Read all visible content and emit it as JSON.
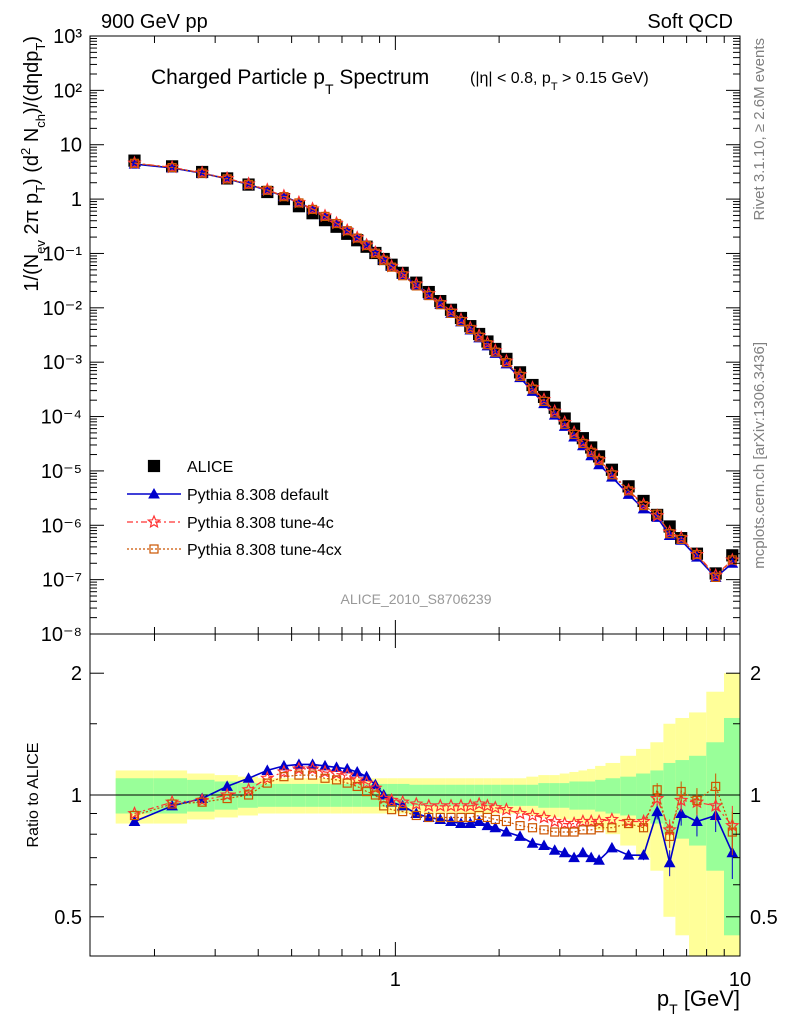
{
  "header": {
    "left": "900 GeV pp",
    "right": "Soft QCD"
  },
  "chart_data": [
    {
      "type": "scatter",
      "title": "Charged Particle pT Spectrum",
      "title_main": "Charged Particle p",
      "title_sub": "T",
      "title_after": " Spectrum",
      "cuts": "(|η| < 0.8, p",
      "cuts_sub": "T",
      "cuts_after": " > 0.15 GeV)",
      "ylabel": "1/(N_ev 2π pT) (d² N_ch)/(dηdpT)",
      "xlabel": "pT [GeV]",
      "x_log": true,
      "y_log": true,
      "xlim": [
        0.13,
        10
      ],
      "ylim": [
        1e-08,
        1000
      ],
      "analysis_label": "ALICE_2010_S8706239",
      "y_tick_labels": [
        "10⁻⁸",
        "10⁻⁷",
        "10⁻⁶",
        "10⁻⁵",
        "10⁻⁴",
        "10⁻³",
        "10⁻²",
        "10⁻¹",
        "1",
        "10",
        "10²",
        "10³"
      ],
      "legend_position": "bottom-left",
      "x": [
        0.175,
        0.225,
        0.275,
        0.325,
        0.375,
        0.425,
        0.475,
        0.525,
        0.575,
        0.625,
        0.675,
        0.725,
        0.775,
        0.825,
        0.875,
        0.925,
        0.975,
        1.05,
        1.15,
        1.25,
        1.35,
        1.45,
        1.55,
        1.65,
        1.75,
        1.85,
        1.95,
        2.1,
        2.3,
        2.5,
        2.7,
        2.9,
        3.1,
        3.3,
        3.5,
        3.7,
        3.9,
        4.25,
        4.75,
        5.25,
        5.75,
        6.25,
        6.75,
        7.5,
        8.5,
        9.5
      ],
      "series": [
        {
          "name": "ALICE",
          "values": [
            5.1,
            4.0,
            3.15,
            2.4,
            1.85,
            1.35,
            1.0,
            0.74,
            0.55,
            0.41,
            0.31,
            0.23,
            0.175,
            0.133,
            0.102,
            0.079,
            0.062,
            0.044,
            0.029,
            0.0195,
            0.0133,
            0.0092,
            0.0065,
            0.0046,
            0.0033,
            0.0024,
            0.00175,
            0.00115,
            0.00065,
            0.00038,
            0.00023,
            0.000145,
            9.2e-05,
            6e-05,
            4e-05,
            2.7e-05,
            1.85e-05,
            1.05e-05,
            5.2e-06,
            2.8e-06,
            1.55e-06,
            9.5e-07,
            5.8e-07,
            3e-07,
            1.3e-07,
            2.8e-07
          ]
        },
        {
          "name": "Pythia 8.308 default",
          "values": [
            4.4,
            3.75,
            3.0,
            2.35,
            1.85,
            1.45,
            1.12,
            0.86,
            0.655,
            0.49,
            0.365,
            0.27,
            0.2,
            0.148,
            0.108,
            0.079,
            0.059,
            0.041,
            0.026,
            0.0172,
            0.0115,
            0.0079,
            0.0055,
            0.0039,
            0.0028,
            0.002,
            0.00145,
            0.00093,
            0.00052,
            0.00029,
            0.000173,
            0.000106,
            6.6e-05,
            4.2e-05,
            2.9e-05,
            1.9e-05,
            1.3e-05,
            7.7e-06,
            3.7e-06,
            2e-06,
            1.4e-06,
            6.5e-07,
            5.3e-07,
            2.6e-07,
            1.1e-07,
            2e-07
          ]
        },
        {
          "name": "Pythia 8.308 tune-4c",
          "values": [
            4.6,
            3.85,
            3.05,
            2.4,
            1.9,
            1.48,
            1.14,
            0.87,
            0.66,
            0.49,
            0.36,
            0.265,
            0.195,
            0.143,
            0.104,
            0.077,
            0.058,
            0.042,
            0.0275,
            0.0183,
            0.0125,
            0.0087,
            0.0061,
            0.0043,
            0.0031,
            0.00225,
            0.00163,
            0.00105,
            0.00059,
            0.00034,
            0.000205,
            0.000125,
            7.8e-05,
            5.1e-05,
            3.4e-05,
            2.3e-05,
            1.6e-05,
            9.1e-06,
            4.4e-06,
            2.4e-06,
            1.5e-06,
            7.5e-07,
            5.9e-07,
            2.9e-07,
            1.2e-07,
            2.3e-07
          ]
        },
        {
          "name": "Pythia 8.308 tune-4cx",
          "values": [
            4.55,
            3.8,
            3.0,
            2.35,
            1.86,
            1.45,
            1.11,
            0.85,
            0.645,
            0.48,
            0.355,
            0.262,
            0.192,
            0.14,
            0.101,
            0.075,
            0.056,
            0.039,
            0.0253,
            0.0168,
            0.0114,
            0.0079,
            0.0056,
            0.004,
            0.0029,
            0.0021,
            0.00153,
            0.00098,
            0.00055,
            0.00032,
            0.00019,
            0.000116,
            7.2e-05,
            4.7e-05,
            3.2e-05,
            2.2e-05,
            1.55e-05,
            8.5e-06,
            4.3e-06,
            2.3e-06,
            1.6e-06,
            7e-07,
            5.5e-07,
            2.9e-07,
            1.1e-07,
            2.3e-07
          ]
        }
      ]
    },
    {
      "type": "line",
      "ylabel": "Ratio to ALICE",
      "xlabel": "pT [GeV]",
      "x_log": true,
      "y_log": true,
      "xlim": [
        0.13,
        10
      ],
      "ylim": [
        0.4,
        2.5
      ],
      "y_tick_labels": [
        "0.5",
        "1",
        "2"
      ],
      "x_tick_labels": [
        "1",
        "10"
      ],
      "band_inner_frac": [
        0.1,
        0.1,
        0.09,
        0.08,
        0.07,
        0.065,
        0.065,
        0.065,
        0.065,
        0.065,
        0.065,
        0.065,
        0.065,
        0.065,
        0.065,
        0.065,
        0.065,
        0.065,
        0.06,
        0.06,
        0.06,
        0.06,
        0.06,
        0.06,
        0.06,
        0.06,
        0.06,
        0.06,
        0.06,
        0.06,
        0.07,
        0.07,
        0.07,
        0.08,
        0.08,
        0.08,
        0.09,
        0.1,
        0.11,
        0.13,
        0.15,
        0.2,
        0.22,
        0.25,
        0.35,
        0.55
      ],
      "band_outer_frac": [
        0.15,
        0.15,
        0.13,
        0.12,
        0.11,
        0.1,
        0.1,
        0.1,
        0.1,
        0.1,
        0.1,
        0.1,
        0.1,
        0.1,
        0.1,
        0.1,
        0.1,
        0.1,
        0.1,
        0.1,
        0.1,
        0.1,
        0.1,
        0.1,
        0.1,
        0.1,
        0.1,
        0.1,
        0.1,
        0.11,
        0.12,
        0.12,
        0.13,
        0.14,
        0.15,
        0.16,
        0.18,
        0.2,
        0.25,
        0.3,
        0.35,
        0.5,
        0.55,
        0.6,
        0.8,
        1.0
      ],
      "series": [
        {
          "name": "Pythia 8.308 default",
          "values": [
            0.86,
            0.94,
            0.98,
            1.05,
            1.1,
            1.15,
            1.18,
            1.19,
            1.19,
            1.18,
            1.17,
            1.16,
            1.14,
            1.11,
            1.06,
            1.0,
            0.96,
            0.94,
            0.9,
            0.88,
            0.87,
            0.86,
            0.85,
            0.85,
            0.86,
            0.84,
            0.83,
            0.81,
            0.79,
            0.76,
            0.75,
            0.73,
            0.72,
            0.7,
            0.72,
            0.7,
            0.69,
            0.74,
            0.71,
            0.71,
            0.91,
            0.68,
            0.9,
            0.86,
            0.89,
            0.72
          ],
          "errors": [
            0,
            0,
            0,
            0,
            0,
            0,
            0,
            0,
            0,
            0,
            0,
            0,
            0,
            0,
            0,
            0,
            0,
            0,
            0,
            0,
            0,
            0,
            0,
            0,
            0,
            0,
            0,
            0,
            0,
            0,
            0,
            0,
            0,
            0,
            0,
            0,
            0,
            0,
            0,
            0.02,
            0.04,
            0.05,
            0.06,
            0.07,
            0.08,
            0.1
          ]
        },
        {
          "name": "Pythia 8.308 tune-4c",
          "values": [
            0.9,
            0.96,
            0.97,
            1.0,
            1.03,
            1.1,
            1.14,
            1.16,
            1.16,
            1.14,
            1.13,
            1.12,
            1.09,
            1.07,
            1.04,
            0.98,
            0.97,
            0.96,
            0.95,
            0.94,
            0.94,
            0.94,
            0.94,
            0.94,
            0.95,
            0.94,
            0.93,
            0.92,
            0.9,
            0.89,
            0.88,
            0.86,
            0.85,
            0.85,
            0.86,
            0.86,
            0.86,
            0.87,
            0.86,
            0.86,
            0.98,
            0.82,
            0.97,
            0.96,
            0.94,
            0.84
          ],
          "errors": [
            0,
            0,
            0,
            0,
            0,
            0,
            0,
            0,
            0,
            0,
            0,
            0,
            0,
            0,
            0,
            0,
            0,
            0,
            0,
            0,
            0,
            0,
            0,
            0,
            0,
            0,
            0,
            0,
            0,
            0,
            0,
            0,
            0,
            0,
            0,
            0,
            0,
            0,
            0,
            0.02,
            0.04,
            0.05,
            0.06,
            0.07,
            0.08,
            0.1
          ]
        },
        {
          "name": "Pythia 8.308 tune-4cx",
          "values": [
            0.89,
            0.95,
            0.96,
            0.98,
            1.0,
            1.07,
            1.11,
            1.12,
            1.12,
            1.1,
            1.09,
            1.07,
            1.05,
            1.02,
            1.0,
            0.94,
            0.92,
            0.91,
            0.89,
            0.88,
            0.88,
            0.88,
            0.88,
            0.88,
            0.89,
            0.88,
            0.87,
            0.86,
            0.84,
            0.83,
            0.82,
            0.81,
            0.81,
            0.81,
            0.82,
            0.82,
            0.83,
            0.83,
            0.85,
            0.83,
            1.03,
            0.79,
            1.02,
            0.97,
            1.05,
            0.81
          ],
          "errors": [
            0,
            0,
            0,
            0,
            0,
            0,
            0,
            0,
            0,
            0,
            0,
            0,
            0,
            0,
            0,
            0,
            0,
            0,
            0,
            0,
            0,
            0,
            0,
            0,
            0,
            0,
            0,
            0,
            0,
            0,
            0,
            0,
            0,
            0,
            0,
            0,
            0,
            0,
            0,
            0.02,
            0.04,
            0.05,
            0.06,
            0.07,
            0.08,
            0.1
          ]
        }
      ]
    }
  ],
  "side_labels": {
    "rivet": "Rivet 3.1.10, ≥ 2.6M events",
    "mcplots": "mcplots.cern.ch [arXiv:1306.3436]"
  },
  "colors": {
    "alice": "#000000",
    "default": "#0000cc",
    "tune4c": "#ff3333",
    "tune4cx": "#cc5500",
    "band_outer": "#ffff99",
    "band_inner": "#99ff99"
  }
}
